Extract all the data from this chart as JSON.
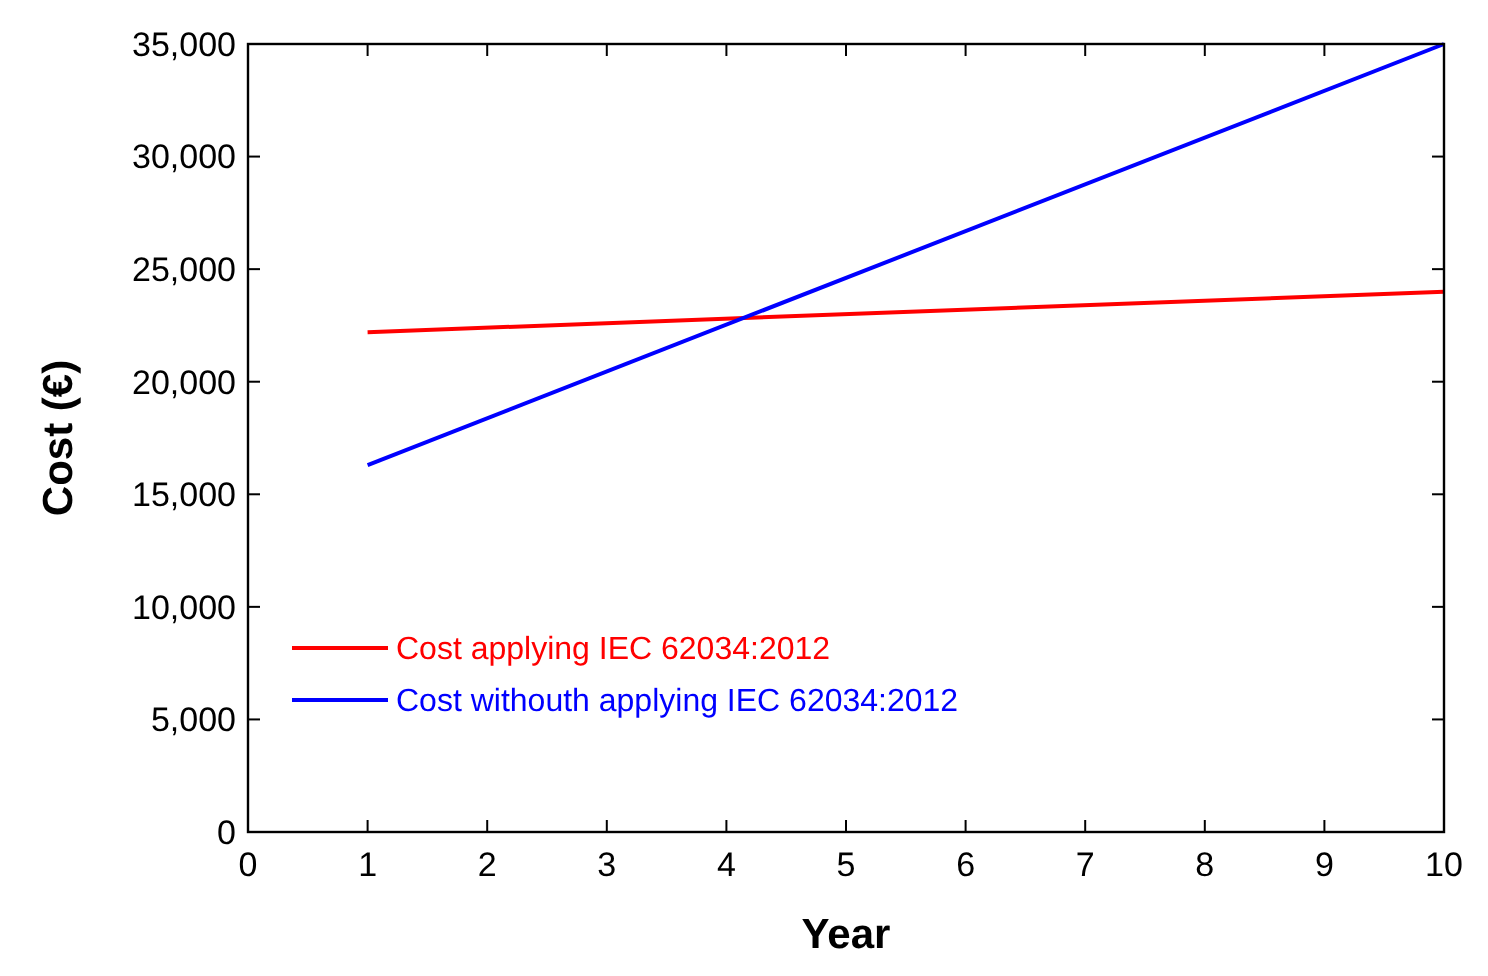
{
  "chart_data": {
    "type": "line",
    "xlabel": "Year",
    "ylabel": "Cost (€)",
    "x": [
      1,
      10
    ],
    "series": [
      {
        "name": "Cost applying IEC 62034:2012",
        "color": "#ff0000",
        "values": [
          22200,
          24000
        ]
      },
      {
        "name": "Cost withouth applying IEC 62034:2012",
        "color": "#0000ff",
        "values": [
          16300,
          35000
        ]
      }
    ],
    "xlim": [
      0,
      10
    ],
    "xticks": [
      0,
      1,
      2,
      3,
      4,
      5,
      6,
      7,
      8,
      9,
      10
    ],
    "ylim": [
      0,
      35000
    ],
    "yticks": [
      0,
      {
        "value": 5000,
        "label": "5,000"
      },
      {
        "value": 10000,
        "label": "10,000"
      },
      {
        "value": 15000,
        "label": "15,000"
      },
      {
        "value": 20000,
        "label": "20,000"
      },
      {
        "value": 25000,
        "label": "25,000"
      },
      {
        "value": 30000,
        "label": "30,000"
      },
      {
        "value": 35000,
        "label": "35,000"
      }
    ],
    "grid": false,
    "legend": "bottom left",
    "marker": "none",
    "line_style": "solid"
  }
}
